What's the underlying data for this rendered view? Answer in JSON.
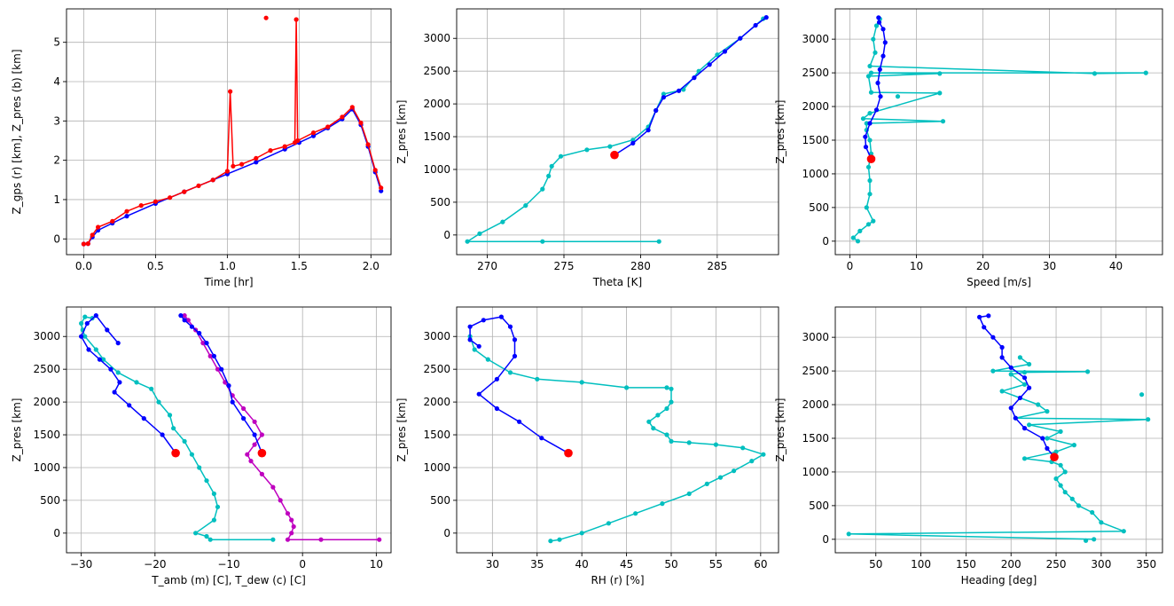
{
  "chart_data": [
    {
      "type": "line",
      "xlabel": "Time [hr]",
      "ylabel": "Z_gps (r) [km], Z_pres (b) [km]",
      "xlim": [
        -0.12,
        2.14
      ],
      "ylim": [
        -0.4,
        5.85
      ],
      "xticks": [
        0.0,
        0.5,
        1.0,
        1.5,
        2.0
      ],
      "xtick_labels": [
        "0.0",
        "0.5",
        "1.0",
        "1.5",
        "2.0"
      ],
      "yticks": [
        0,
        1,
        2,
        3,
        4,
        5
      ],
      "ytick_labels": [
        "0",
        "1",
        "2",
        "3",
        "4",
        "5"
      ],
      "grid": true,
      "series": [
        {
          "color": "#0000ff",
          "marker": "dot",
          "x": [
            0.0,
            0.03,
            0.06,
            0.1,
            0.2,
            0.3,
            0.5,
            0.7,
            0.9,
            1.0,
            1.2,
            1.4,
            1.5,
            1.6,
            1.7,
            1.8,
            1.87,
            1.93,
            1.98,
            2.03,
            2.07
          ],
          "y": [
            -0.13,
            -0.12,
            0.05,
            0.22,
            0.4,
            0.58,
            0.9,
            1.2,
            1.5,
            1.65,
            1.95,
            2.28,
            2.45,
            2.62,
            2.82,
            3.05,
            3.3,
            2.9,
            2.35,
            1.7,
            1.22
          ]
        },
        {
          "color": "#ff0000",
          "marker": "dot",
          "x": [
            0.0,
            0.03,
            0.06,
            0.1,
            0.2,
            0.3,
            0.4,
            0.5,
            0.6,
            0.7,
            0.8,
            0.9,
            1.0,
            1.02,
            1.04,
            1.1,
            1.2,
            1.3,
            1.4,
            1.47,
            1.48,
            1.49,
            1.6,
            1.7,
            1.8,
            1.87,
            1.93,
            1.98,
            2.03,
            2.07
          ],
          "y": [
            -0.13,
            -0.12,
            0.1,
            0.3,
            0.45,
            0.7,
            0.85,
            0.95,
            1.05,
            1.2,
            1.35,
            1.5,
            1.72,
            3.75,
            1.85,
            1.9,
            2.05,
            2.25,
            2.35,
            2.45,
            5.58,
            2.5,
            2.7,
            2.85,
            3.1,
            3.35,
            2.95,
            2.4,
            1.75,
            1.3
          ]
        },
        {
          "color": "#ff0000",
          "marker": "dot",
          "line": false,
          "x": [
            1.27
          ],
          "y": [
            5.62
          ]
        }
      ]
    },
    {
      "type": "line",
      "xlabel": "Theta [K]",
      "ylabel": "Z_pres [km]",
      "xlim": [
        268.0,
        289.0
      ],
      "ylim": [
        -300,
        3450
      ],
      "xticks": [
        270,
        275,
        280,
        285
      ],
      "xtick_labels": [
        "270",
        "275",
        "280",
        "285"
      ],
      "yticks": [
        0,
        500,
        1000,
        1500,
        2000,
        2500,
        3000
      ],
      "ytick_labels": [
        "0",
        "500",
        "1000",
        "1500",
        "2000",
        "2500",
        "3000"
      ],
      "grid": true,
      "series": [
        {
          "color": "#00bfbf",
          "marker": "dot",
          "x": [
            281.2,
            273.6,
            268.7,
            269.5,
            271.0,
            272.5,
            273.6,
            274.0,
            274.2,
            274.8,
            276.5,
            278.0,
            279.5,
            280.5,
            281.0,
            281.5,
            282.8,
            283.8,
            285.0,
            286.5,
            288.0
          ],
          "y": [
            -100,
            -100,
            -100,
            20,
            200,
            450,
            700,
            900,
            1050,
            1200,
            1300,
            1350,
            1450,
            1650,
            1900,
            2150,
            2220,
            2500,
            2750,
            3000,
            3300
          ]
        },
        {
          "color": "#0000ff",
          "marker": "dot",
          "x": [
            278.3,
            279.5,
            280.5,
            281.0,
            281.5,
            282.5,
            283.5,
            284.5,
            285.5,
            286.5,
            287.5,
            288.2
          ],
          "y": [
            1220,
            1400,
            1600,
            1900,
            2100,
            2200,
            2400,
            2600,
            2800,
            3000,
            3200,
            3320
          ]
        },
        {
          "color": "#ff0000",
          "marker": "big",
          "line": false,
          "x": [
            278.3
          ],
          "y": [
            1220
          ]
        }
      ]
    },
    {
      "type": "line",
      "xlabel": "Speed [m/s]",
      "ylabel": "Z_pres [km]",
      "xlim": [
        -2.2,
        47.0
      ],
      "ylim": [
        -200,
        3450
      ],
      "xticks": [
        0,
        10,
        20,
        30,
        40
      ],
      "xtick_labels": [
        "0",
        "10",
        "20",
        "30",
        "40"
      ],
      "yticks": [
        0,
        500,
        1000,
        1500,
        2000,
        2500,
        3000
      ],
      "ytick_labels": [
        "0",
        "500",
        "1000",
        "1500",
        "2000",
        "2500",
        "3000"
      ],
      "grid": true,
      "series": [
        {
          "color": "#00bfbf",
          "marker": "dot",
          "x": [
            1.2,
            0.5,
            1.5,
            2.8,
            3.5,
            2.5,
            3.0,
            3.0,
            2.8,
            3.2,
            3.0,
            2.5,
            2.5,
            14.0,
            2.0,
            3.0,
            13.5,
            3.2,
            2.8,
            13.5,
            3.2,
            44.5,
            36.8,
            3.0,
            3.8,
            3.5,
            4.0,
            4.5
          ],
          "y": [
            0,
            50,
            150,
            250,
            300,
            500,
            700,
            900,
            1100,
            1300,
            1500,
            1650,
            1750,
            1780,
            1820,
            1900,
            2200,
            2210,
            2450,
            2490,
            2500,
            2500,
            2490,
            2600,
            2800,
            3000,
            3200,
            3300
          ]
        },
        {
          "color": "#00bfbf",
          "marker": "dot",
          "line": false,
          "x": [
            7.2
          ],
          "y": [
            2150
          ]
        },
        {
          "color": "#0000ff",
          "marker": "dot",
          "x": [
            3.2,
            2.4,
            2.3,
            3.0,
            4.0,
            4.6,
            4.2,
            4.5,
            5.0,
            5.3,
            5.0,
            4.4,
            4.3
          ],
          "y": [
            1220,
            1400,
            1550,
            1750,
            1950,
            2150,
            2350,
            2550,
            2750,
            2950,
            3150,
            3250,
            3320
          ]
        },
        {
          "color": "#ff0000",
          "marker": "big",
          "line": false,
          "x": [
            3.2
          ],
          "y": [
            1220
          ]
        }
      ]
    },
    {
      "type": "line",
      "xlabel": "T_amb (m) [C], T_dew (c) [C]",
      "ylabel": "Z_pres [km]",
      "xlim": [
        -32.0,
        12.0
      ],
      "ylim": [
        -300,
        3450
      ],
      "xticks": [
        -30,
        -20,
        -10,
        0,
        10
      ],
      "xtick_labels": [
        "−30",
        "−20",
        "−10",
        "0",
        "10"
      ],
      "yticks": [
        0,
        500,
        1000,
        1500,
        2000,
        2500,
        3000
      ],
      "ytick_labels": [
        "0",
        "500",
        "1000",
        "1500",
        "2000",
        "2500",
        "3000"
      ],
      "grid": true,
      "series": [
        {
          "color": "#00bfbf",
          "marker": "dot",
          "x": [
            -4.0,
            -12.5,
            -13.0,
            -14.5,
            -12.0,
            -11.5,
            -12.0,
            -13.0,
            -14.0,
            -15.0,
            -16.0,
            -17.5,
            -18.0,
            -19.5,
            -20.5,
            -22.5,
            -25.0,
            -27.0,
            -28.0,
            -29.5,
            -29.8,
            -30.0,
            -29.5,
            -28.5
          ],
          "y": [
            -100,
            -100,
            -50,
            0,
            200,
            400,
            600,
            800,
            1000,
            1200,
            1400,
            1600,
            1800,
            2000,
            2200,
            2300,
            2450,
            2650,
            2800,
            3000,
            3100,
            3200,
            3300,
            3280
          ]
        },
        {
          "color": "#0000ff",
          "marker": "dot",
          "x": [
            -17.2,
            -19.0,
            -21.5,
            -23.5,
            -25.5,
            -24.8,
            -26.0,
            -27.5,
            -29.0,
            -30.0,
            -29.2,
            -28.0,
            -26.5,
            -25.0
          ],
          "y": [
            1220,
            1500,
            1750,
            1950,
            2150,
            2300,
            2500,
            2650,
            2800,
            3000,
            3200,
            3320,
            3100,
            2900
          ]
        },
        {
          "color": "#bf00bf",
          "marker": "dot",
          "x": [
            10.4,
            2.5,
            -2.0,
            -1.5,
            -1.2,
            -1.5,
            -2.0,
            -3.0,
            -4.0,
            -5.5,
            -7.0,
            -7.5,
            -6.5,
            -5.5,
            -6.5,
            -8.0,
            -9.5,
            -10.5,
            -11.5,
            -12.5,
            -13.5,
            -14.5,
            -15.5,
            -16.0
          ],
          "y": [
            -100,
            -100,
            -100,
            0,
            100,
            200,
            300,
            500,
            700,
            900,
            1100,
            1200,
            1350,
            1500,
            1700,
            1900,
            2100,
            2300,
            2500,
            2700,
            2900,
            3100,
            3250,
            3320
          ]
        },
        {
          "color": "#0000ff",
          "marker": "dot",
          "x": [
            -5.5,
            -6.5,
            -8.0,
            -9.5,
            -10.0,
            -11.0,
            -12.0,
            -13.0,
            -14.0,
            -15.0,
            -16.0,
            -16.5
          ],
          "y": [
            1220,
            1500,
            1750,
            2000,
            2250,
            2500,
            2700,
            2900,
            3050,
            3150,
            3250,
            3320
          ]
        },
        {
          "color": "#ff0000",
          "marker": "big",
          "line": false,
          "x": [
            -17.2,
            -5.5
          ],
          "y": [
            1220,
            1220
          ]
        }
      ]
    },
    {
      "type": "line",
      "xlabel": "RH (r) [%]",
      "ylabel": "Z_pres [km]",
      "xlim": [
        26.0,
        62.0
      ],
      "ylim": [
        -300,
        3450
      ],
      "xticks": [
        30,
        35,
        40,
        45,
        50,
        55,
        60
      ],
      "xtick_labels": [
        "30",
        "35",
        "40",
        "45",
        "50",
        "55",
        "60"
      ],
      "yticks": [
        0,
        500,
        1000,
        1500,
        2000,
        2500,
        3000
      ],
      "ytick_labels": [
        "0",
        "500",
        "1000",
        "1500",
        "2000",
        "2500",
        "3000"
      ],
      "grid": true,
      "series": [
        {
          "color": "#00bfbf",
          "marker": "dot",
          "x": [
            36.5,
            37.5,
            40.0,
            43.0,
            46.0,
            49.0,
            52.0,
            54.0,
            55.5,
            57.0,
            59.0,
            60.3,
            58.0,
            55.0,
            52.0,
            50.0,
            49.5,
            48.0,
            47.5,
            48.5,
            49.5,
            50.0,
            50.0,
            49.5,
            45.0,
            40.0,
            35.0,
            32.0,
            29.5,
            28.0,
            27.5
          ],
          "y": [
            -120,
            -100,
            0,
            150,
            300,
            450,
            600,
            750,
            850,
            950,
            1100,
            1200,
            1300,
            1350,
            1380,
            1400,
            1500,
            1600,
            1700,
            1800,
            1900,
            2000,
            2200,
            2220,
            2220,
            2300,
            2350,
            2450,
            2650,
            2800,
            3000
          ]
        },
        {
          "color": "#0000ff",
          "marker": "dot",
          "x": [
            38.5,
            35.5,
            33.0,
            30.5,
            28.5,
            30.5,
            32.5,
            32.5,
            32.0,
            31.0,
            29.0,
            27.5,
            27.5,
            28.5
          ],
          "y": [
            1220,
            1450,
            1700,
            1900,
            2120,
            2350,
            2700,
            2950,
            3150,
            3300,
            3250,
            3150,
            2950,
            2850
          ]
        },
        {
          "color": "#ff0000",
          "marker": "big",
          "line": false,
          "x": [
            38.5
          ],
          "y": [
            1220
          ]
        }
      ]
    },
    {
      "type": "line",
      "xlabel": "Heading [deg]",
      "ylabel": "Z_pres [km]",
      "xlim": [
        5.0,
        368.0
      ],
      "ylim": [
        -200,
        3450
      ],
      "xticks": [
        50,
        100,
        150,
        200,
        250,
        300,
        350
      ],
      "xtick_labels": [
        "50",
        "100",
        "150",
        "200",
        "250",
        "300",
        "350"
      ],
      "yticks": [
        0,
        500,
        1000,
        1500,
        2000,
        2500,
        3000
      ],
      "ytick_labels": [
        "0",
        "500",
        "1000",
        "1500",
        "2000",
        "2500",
        "3000"
      ],
      "grid": true,
      "series": [
        {
          "color": "#00bfbf",
          "marker": "dot",
          "x": [
            292,
            20,
            325,
            300,
            290,
            275,
            268,
            260,
            255,
            250,
            260,
            255,
            245,
            215,
            250,
            270,
            240,
            255,
            220,
            352,
            205,
            240,
            230,
            190,
            215,
            200,
            215,
            285,
            180,
            220,
            210
          ],
          "y": [
            0,
            80,
            120,
            250,
            400,
            500,
            600,
            700,
            800,
            900,
            1000,
            1100,
            1150,
            1200,
            1300,
            1400,
            1500,
            1600,
            1700,
            1780,
            1800,
            1900,
            2000,
            2200,
            2300,
            2450,
            2480,
            2490,
            2500,
            2600,
            2700
          ]
        },
        {
          "color": "#00bfbf",
          "marker": "dot",
          "line": false,
          "x": [
            283,
            345
          ],
          "y": [
            -20,
            2150
          ]
        },
        {
          "color": "#0000ff",
          "marker": "dot",
          "x": [
            248,
            240,
            235,
            215,
            205,
            200,
            210,
            220,
            215,
            200,
            190,
            190,
            180,
            170,
            165,
            175
          ],
          "y": [
            1220,
            1350,
            1500,
            1650,
            1800,
            1950,
            2100,
            2250,
            2400,
            2550,
            2700,
            2850,
            3000,
            3150,
            3300,
            3320
          ]
        },
        {
          "color": "#ff0000",
          "marker": "big",
          "line": false,
          "x": [
            248
          ],
          "y": [
            1220
          ]
        }
      ]
    }
  ]
}
